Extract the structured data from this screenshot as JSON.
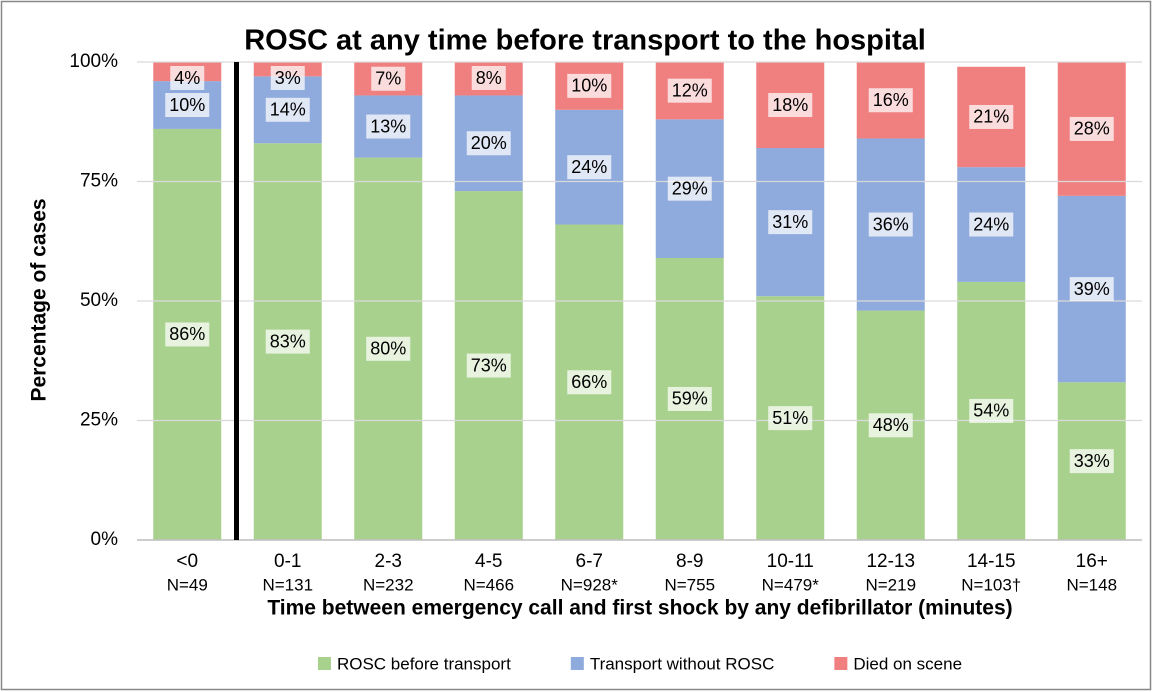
{
  "chart_data": {
    "type": "stacked_bar",
    "title": "ROSC at any time before transport to the hospital",
    "x_label": "Time between emergency call and first shock by any defibrillator (minutes)",
    "y_label": "Percentage of cases",
    "categories": [
      "<0",
      "0-1",
      "2-3",
      "4-5",
      "6-7",
      "8-9",
      "10-11",
      "12-13",
      "14-15",
      "16+"
    ],
    "category_counts": [
      "N=49",
      "N=131",
      "N=232",
      "N=466",
      "N=928*",
      "N=755",
      "N=479*",
      "N=219",
      "N=103†",
      "N=148"
    ],
    "series": [
      {
        "name": "ROSC before transport",
        "color": "#a9d18e",
        "values": [
          86,
          83,
          80,
          73,
          66,
          59,
          51,
          48,
          54,
          33
        ],
        "value_labels": [
          "86%",
          "83%",
          "80%",
          "73%",
          "66%",
          "59%",
          "51%",
          "48%",
          "54%",
          "33%"
        ]
      },
      {
        "name": "Transport without ROSC",
        "color": "#8faadc",
        "values": [
          10,
          14,
          13,
          20,
          24,
          29,
          31,
          36,
          24,
          39
        ],
        "value_labels": [
          "10%",
          "14%",
          "13%",
          "20%",
          "24%",
          "29%",
          "31%",
          "36%",
          "24%",
          "39%"
        ]
      },
      {
        "name": "Died on scene",
        "color": "#f08080",
        "values": [
          4,
          3,
          7,
          8,
          10,
          12,
          18,
          16,
          21,
          28
        ],
        "value_labels": [
          "4%",
          "3%",
          "7%",
          "8%",
          "10%",
          "12%",
          "18%",
          "16%",
          "21%",
          "28%"
        ]
      }
    ],
    "ylim": [
      0,
      100
    ],
    "yticks": [
      {
        "value": 0,
        "label": "0%"
      },
      {
        "value": 25,
        "label": "25%"
      },
      {
        "value": 50,
        "label": "50%"
      },
      {
        "value": 75,
        "label": "75%"
      },
      {
        "value": 100,
        "label": "100%"
      }
    ],
    "grid": true,
    "legend": "bottom"
  }
}
